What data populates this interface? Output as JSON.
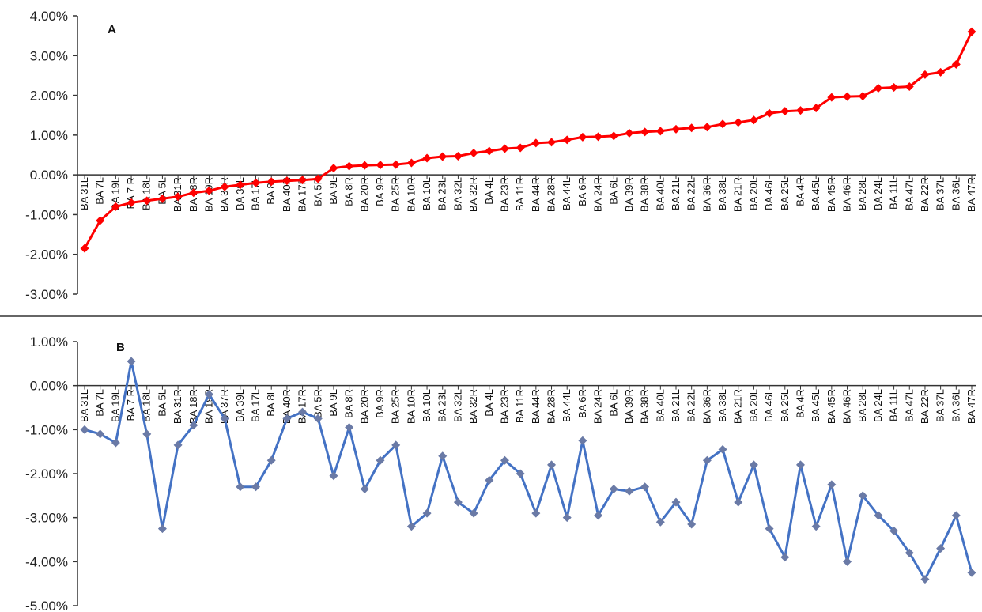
{
  "chart_data": [
    {
      "type": "line",
      "panel_label": "A",
      "line_color": "#ff0000",
      "marker_color": "#ff0000",
      "ylim": [
        -3.0,
        4.0
      ],
      "yticks": [
        "4.00%",
        "3.00%",
        "2.00%",
        "1.00%",
        "0.00%",
        "-1.00%",
        "-2.00%",
        "-3.00%"
      ],
      "ytick_values": [
        4,
        3,
        2,
        1,
        0,
        -1,
        -2,
        -3
      ],
      "categories": [
        "BA 31L",
        "BA 7L",
        "BA 19L",
        "BA 7 R",
        "BA 18L",
        "BA 5L",
        "BA 31R",
        "BA 18R",
        "BA 19R",
        "BA 37R",
        "BA 39L",
        "BA 17L",
        "BA 8L",
        "BA 40R",
        "BA 17R",
        "BA 5R",
        "BA 9L",
        "BA 8R",
        "BA 20R",
        "BA 9R",
        "BA 25R",
        "BA 10R",
        "BA 10L",
        "BA 23L",
        "BA 32L",
        "BA 32R",
        "BA 4L",
        "BA 23R",
        "BA 11R",
        "BA 44R",
        "BA 28R",
        "BA 44L",
        "BA 6R",
        "BA 24R",
        "BA 6L",
        "BA 39R",
        "BA 38R",
        "BA 40L",
        "BA 21L",
        "BA 22L",
        "BA 36R",
        "BA 38L",
        "BA 21R",
        "BA 20L",
        "BA 46L",
        "BA 25L",
        "BA 4R",
        "BA 45L",
        "BA 45R",
        "BA 46R",
        "BA 28L",
        "BA 24L",
        "BA 11L",
        "BA 47L",
        "BA 22R",
        "BA 37L",
        "BA 36L",
        "BA 47R"
      ],
      "values": [
        -1.85,
        -1.15,
        -0.8,
        -0.7,
        -0.65,
        -0.6,
        -0.55,
        -0.45,
        -0.4,
        -0.3,
        -0.25,
        -0.2,
        -0.17,
        -0.15,
        -0.13,
        -0.1,
        0.17,
        0.22,
        0.24,
        0.25,
        0.26,
        0.3,
        0.42,
        0.46,
        0.47,
        0.55,
        0.6,
        0.66,
        0.68,
        0.8,
        0.82,
        0.88,
        0.95,
        0.96,
        0.98,
        1.05,
        1.08,
        1.1,
        1.15,
        1.18,
        1.2,
        1.28,
        1.32,
        1.38,
        1.55,
        1.6,
        1.62,
        1.68,
        1.95,
        1.97,
        1.98,
        2.18,
        2.2,
        2.22,
        2.52,
        2.58,
        2.78,
        3.6
      ]
    },
    {
      "type": "line",
      "panel_label": "B",
      "line_color": "#4472c4",
      "marker_color": "#6a7aa6",
      "ylim": [
        -5.0,
        1.0
      ],
      "yticks": [
        "1.00%",
        "0.00%",
        "-1.00%",
        "-2.00%",
        "-3.00%",
        "-4.00%",
        "-5.00%"
      ],
      "ytick_values": [
        1,
        0,
        -1,
        -2,
        -3,
        -4,
        -5
      ],
      "categories": [
        "BA 31L",
        "BA 7L",
        "BA 19L",
        "BA 7 R",
        "BA 18L",
        "BA 5L",
        "BA 31R",
        "BA 18R",
        "BA 19R",
        "BA 37R",
        "BA 39L",
        "BA 17L",
        "BA 8L",
        "BA 40R",
        "BA 17R",
        "BA 5R",
        "BA 9L",
        "BA 8R",
        "BA 20R",
        "BA 9R",
        "BA 25R",
        "BA 10R",
        "BA 10L",
        "BA 23L",
        "BA 32L",
        "BA 32R",
        "BA 4L",
        "BA 23R",
        "BA 11R",
        "BA 44R",
        "BA 28R",
        "BA 44L",
        "BA 6R",
        "BA 24R",
        "BA 6L",
        "BA 39R",
        "BA 38R",
        "BA 40L",
        "BA 21L",
        "BA 22L",
        "BA 36R",
        "BA 38L",
        "BA 21R",
        "BA 20L",
        "BA 46L",
        "BA 25L",
        "BA 4R",
        "BA 45L",
        "BA 45R",
        "BA 46R",
        "BA 28L",
        "BA 24L",
        "BA 11L",
        "BA 47L",
        "BA 22R",
        "BA 37L",
        "BA 36L",
        "BA 47R"
      ],
      "values": [
        -1.0,
        -1.1,
        -1.3,
        0.55,
        -1.1,
        -3.25,
        -1.35,
        -0.9,
        -0.2,
        -0.75,
        -2.3,
        -2.3,
        -1.7,
        -0.75,
        -0.6,
        -0.75,
        -2.05,
        -0.95,
        -2.35,
        -1.7,
        -1.35,
        -3.2,
        -2.9,
        -1.6,
        -2.65,
        -2.9,
        -2.15,
        -1.7,
        -2.0,
        -2.9,
        -1.8,
        -3.0,
        -1.25,
        -2.95,
        -2.35,
        -2.4,
        -2.3,
        -3.1,
        -2.65,
        -3.15,
        -1.7,
        -1.45,
        -2.65,
        -1.8,
        -3.25,
        -3.9,
        -1.8,
        -3.2,
        -2.25,
        -4.0,
        -2.5,
        -2.95,
        -3.3,
        -3.8,
        -4.4,
        -3.7,
        -2.95,
        -4.25
      ]
    }
  ]
}
